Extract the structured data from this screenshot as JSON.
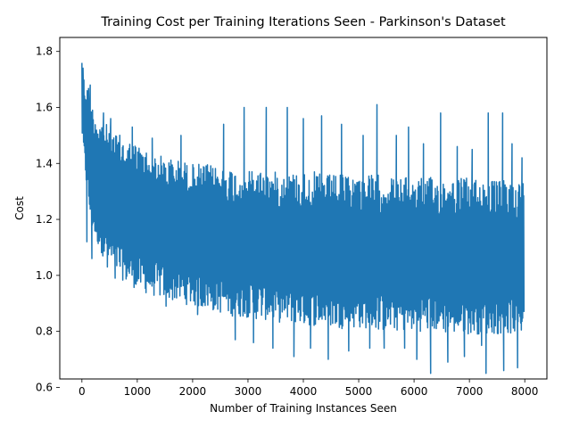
{
  "chart_data": {
    "type": "line",
    "title": "Training Cost per Training Iterations Seen - Parkinson's Dataset",
    "xlabel": "Number of Training Instances Seen",
    "ylabel": "Cost",
    "xlim": [
      -400,
      8400
    ],
    "ylim": [
      0.63,
      1.85
    ],
    "xticks": [
      0,
      1000,
      2000,
      3000,
      4000,
      5000,
      6000,
      7000,
      8000
    ],
    "yticks": [
      0.6,
      0.8,
      1.0,
      1.2,
      1.4,
      1.6,
      1.8
    ],
    "grid": false,
    "legend": "none",
    "series": [
      {
        "color": "#1f77b4",
        "x": [
          0,
          40,
          80,
          120,
          160,
          200,
          300,
          400,
          500,
          600,
          700,
          800,
          900,
          1000,
          1200,
          1400,
          1600,
          1800,
          2000,
          2200,
          2400,
          2600,
          2800,
          3000,
          3200,
          3400,
          3600,
          3800,
          4000,
          4200,
          4400,
          4600,
          4800,
          5000,
          5200,
          5400,
          5600,
          5800,
          6000,
          6200,
          6400,
          6600,
          6800,
          7000,
          7200,
          7400,
          7600,
          7800,
          7990
        ],
        "upper": [
          1.81,
          1.7,
          1.68,
          1.68,
          1.64,
          1.6,
          1.57,
          1.55,
          1.53,
          1.51,
          1.5,
          1.49,
          1.48,
          1.47,
          1.45,
          1.43,
          1.42,
          1.41,
          1.4,
          1.4,
          1.39,
          1.39,
          1.38,
          1.38,
          1.38,
          1.37,
          1.37,
          1.37,
          1.37,
          1.37,
          1.36,
          1.36,
          1.36,
          1.36,
          1.36,
          1.36,
          1.35,
          1.35,
          1.35,
          1.35,
          1.35,
          1.35,
          1.35,
          1.35,
          1.35,
          1.34,
          1.34,
          1.34,
          1.34
        ],
        "lower": [
          1.5,
          1.4,
          1.32,
          1.24,
          1.18,
          1.15,
          1.1,
          1.06,
          1.03,
          1.01,
          0.99,
          0.97,
          0.96,
          0.95,
          0.93,
          0.92,
          0.91,
          0.9,
          0.89,
          0.88,
          0.87,
          0.86,
          0.85,
          0.85,
          0.84,
          0.84,
          0.83,
          0.83,
          0.82,
          0.82,
          0.82,
          0.81,
          0.81,
          0.81,
          0.81,
          0.8,
          0.8,
          0.8,
          0.8,
          0.8,
          0.8,
          0.79,
          0.79,
          0.79,
          0.79,
          0.79,
          0.79,
          0.79,
          0.79
        ]
      }
    ],
    "spikes": [
      {
        "x": 20,
        "y": 1.74
      },
      {
        "x": 90,
        "y": 1.12
      },
      {
        "x": 150,
        "y": 1.68
      },
      {
        "x": 180,
        "y": 1.06
      },
      {
        "x": 390,
        "y": 1.58
      },
      {
        "x": 460,
        "y": 1.03
      },
      {
        "x": 520,
        "y": 1.56
      },
      {
        "x": 600,
        "y": 0.99
      },
      {
        "x": 910,
        "y": 1.53
      },
      {
        "x": 1000,
        "y": 0.98
      },
      {
        "x": 1270,
        "y": 1.49
      },
      {
        "x": 1520,
        "y": 0.89
      },
      {
        "x": 1790,
        "y": 1.5
      },
      {
        "x": 2090,
        "y": 0.86
      },
      {
        "x": 2560,
        "y": 1.54
      },
      {
        "x": 2770,
        "y": 0.77
      },
      {
        "x": 2930,
        "y": 1.6
      },
      {
        "x": 3100,
        "y": 0.76
      },
      {
        "x": 3330,
        "y": 1.6
      },
      {
        "x": 3450,
        "y": 0.74
      },
      {
        "x": 3710,
        "y": 1.6
      },
      {
        "x": 3830,
        "y": 0.71
      },
      {
        "x": 4000,
        "y": 1.56
      },
      {
        "x": 4130,
        "y": 0.74
      },
      {
        "x": 4330,
        "y": 1.57
      },
      {
        "x": 4450,
        "y": 0.7
      },
      {
        "x": 4690,
        "y": 1.54
      },
      {
        "x": 4820,
        "y": 0.73
      },
      {
        "x": 5080,
        "y": 1.5
      },
      {
        "x": 5200,
        "y": 0.74
      },
      {
        "x": 5330,
        "y": 1.61
      },
      {
        "x": 5460,
        "y": 0.74
      },
      {
        "x": 5680,
        "y": 1.5
      },
      {
        "x": 5830,
        "y": 0.74
      },
      {
        "x": 5900,
        "y": 1.53
      },
      {
        "x": 6050,
        "y": 0.7
      },
      {
        "x": 6170,
        "y": 1.47
      },
      {
        "x": 6300,
        "y": 0.65
      },
      {
        "x": 6480,
        "y": 1.58
      },
      {
        "x": 6610,
        "y": 0.69
      },
      {
        "x": 6780,
        "y": 1.46
      },
      {
        "x": 6910,
        "y": 0.71
      },
      {
        "x": 7050,
        "y": 1.45
      },
      {
        "x": 7220,
        "y": 0.75
      },
      {
        "x": 7340,
        "y": 1.58
      },
      {
        "x": 7300,
        "y": 0.65
      },
      {
        "x": 7600,
        "y": 1.58
      },
      {
        "x": 7620,
        "y": 0.66
      },
      {
        "x": 7770,
        "y": 1.47
      },
      {
        "x": 7870,
        "y": 0.67
      },
      {
        "x": 7950,
        "y": 1.42
      }
    ]
  }
}
